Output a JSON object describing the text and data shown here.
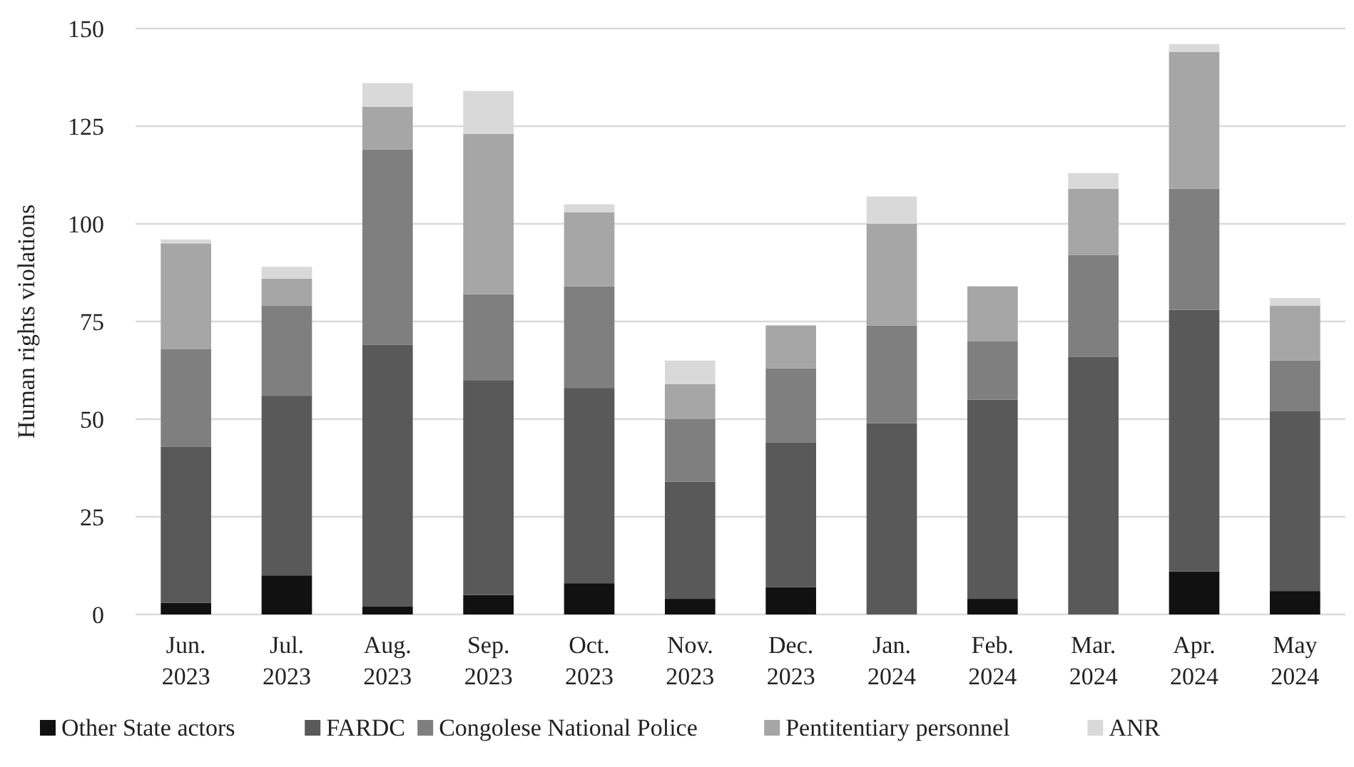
{
  "chart_data": {
    "type": "bar",
    "stacked": true,
    "ylabel": "Human rights violations",
    "categories": [
      "Jun. 2023",
      "Jul. 2023",
      "Aug. 2023",
      "Sep. 2023",
      "Oct. 2023",
      "Nov. 2023",
      "Dec. 2023",
      "Jan. 2024",
      "Feb. 2024",
      "Mar. 2024",
      "Apr. 2024",
      "May 2024"
    ],
    "series": [
      {
        "name": "Other State actors",
        "color": "#111111",
        "values": [
          3,
          10,
          2,
          5,
          8,
          4,
          7,
          0,
          4,
          0,
          11,
          6
        ]
      },
      {
        "name": "FARDC",
        "color": "#595959",
        "values": [
          40,
          46,
          67,
          55,
          50,
          30,
          37,
          49,
          51,
          66,
          67,
          46
        ]
      },
      {
        "name": "Congolese National Police",
        "color": "#7f7f7f",
        "values": [
          25,
          23,
          50,
          22,
          26,
          16,
          19,
          25,
          15,
          26,
          31,
          13
        ]
      },
      {
        "name": "Pentitentiary personnel",
        "color": "#a6a6a6",
        "values": [
          27,
          7,
          11,
          41,
          19,
          9,
          11,
          26,
          14,
          17,
          35,
          14
        ]
      },
      {
        "name": "ANR",
        "color": "#d9d9d9",
        "values": [
          1,
          3,
          6,
          11,
          2,
          6,
          0,
          7,
          0,
          4,
          2,
          2
        ]
      }
    ],
    "ylim": [
      0,
      150
    ],
    "yticks": [
      0,
      25,
      50,
      75,
      100,
      125,
      150
    ],
    "grid": "y",
    "legend": "bottom"
  }
}
